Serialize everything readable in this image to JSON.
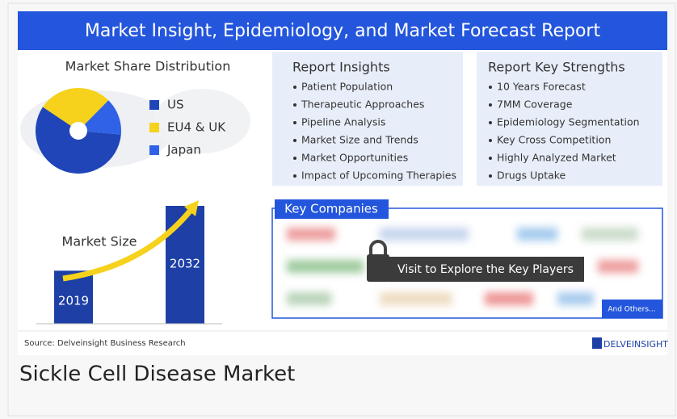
{
  "banner": "Market Insight, Epidemiology, and Market Forecast Report",
  "market_share": {
    "type": "pie",
    "title": "Market Share Distribution",
    "categories": [
      "US",
      "EU4 & UK",
      "Japan"
    ],
    "values": [
      58,
      28,
      14
    ],
    "colors": [
      "#1f45b8",
      "#f6d21c",
      "#2f62e6"
    ]
  },
  "insights": {
    "title": "Report Insights",
    "items": [
      "Patient Population",
      "Therapeutic Approaches",
      "Pipeline Analysis",
      "Market Size and Trends",
      "Market Opportunities",
      "Impact of Upcoming Therapies"
    ]
  },
  "strengths": {
    "title": "Report Key Strengths",
    "items": [
      "10 Years Forecast",
      "7MM Coverage",
      "Epidemiology Segmentation",
      "Key Cross Competition",
      "Highly Analyzed Market",
      "Drugs Uptake"
    ]
  },
  "key_companies": {
    "title": "Key Companies",
    "overlay": "Visit to Explore the Key Players",
    "more": "And Others..."
  },
  "market_size": {
    "type": "bar",
    "title": "Market Size",
    "categories": [
      "2019",
      "2032"
    ],
    "values": [
      45,
      100
    ],
    "ylim": [
      0,
      100
    ],
    "color": "#1d3fa6"
  },
  "source": "Source: Delveinsight Business Research",
  "logo": "DELVEINSIGHT",
  "caption": "Sickle Cell Disease Market"
}
